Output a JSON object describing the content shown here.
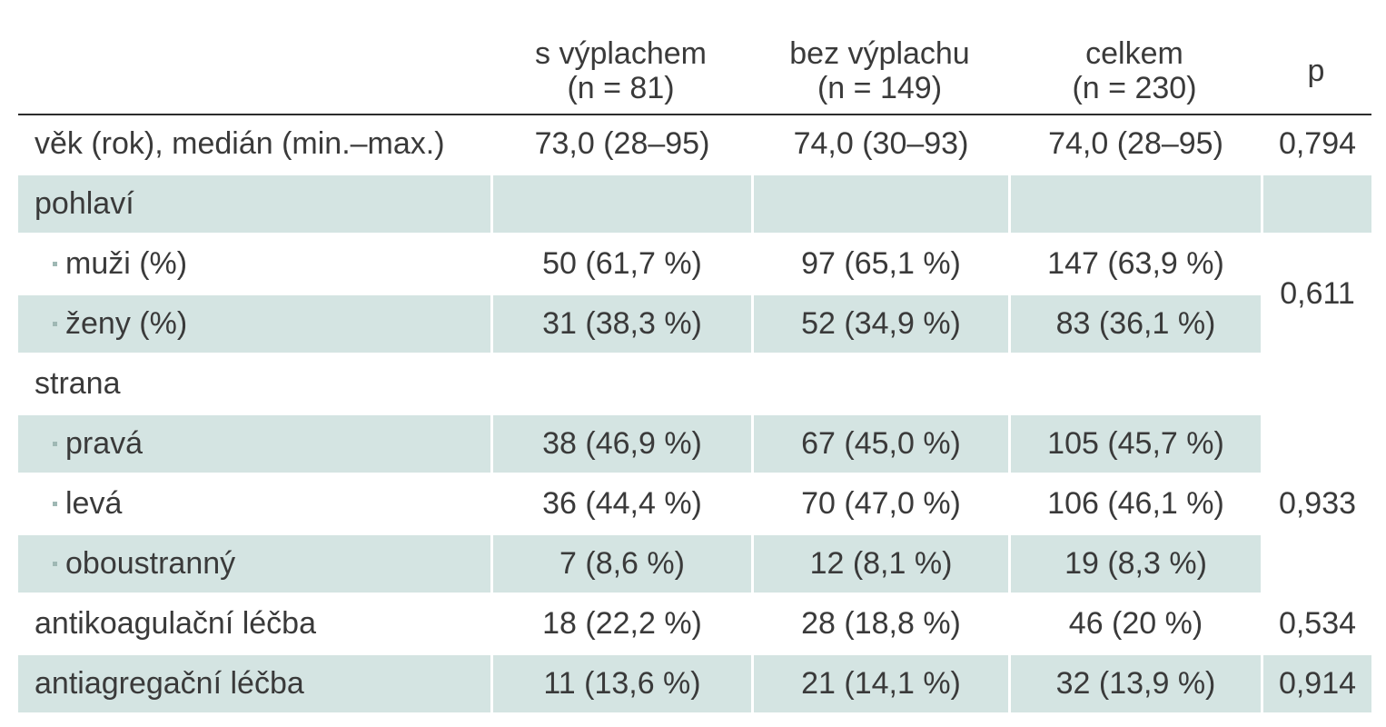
{
  "header": {
    "col1_line1": "s výplachem",
    "col1_line2": "(n = 81)",
    "col2_line1": "bez výplachu",
    "col2_line2": "(n = 149)",
    "col3_line1": "celkem",
    "col3_line2": "(n = 230)",
    "col4": "p"
  },
  "rows": [
    {
      "label": "věk (rok), medián (min.–max.)",
      "c1": "73,0 (28–95)",
      "c2": "74,0 (30–93)",
      "c3": "74,0 (28–95)",
      "p": "0,794"
    },
    {
      "label": "pohlaví"
    },
    {
      "label": "muži (%)",
      "c1": "50 (61,7 %)",
      "c2": "97 (65,1 %)",
      "c3": "147 (63,9 %)"
    },
    {
      "label": "ženy (%)",
      "c1": "31 (38,3 %)",
      "c2": "52 (34,9 %)",
      "c3": "83 (36,1 %)"
    },
    {
      "label": "strana"
    },
    {
      "label": "pravá",
      "c1": "38 (46,9 %)",
      "c2": "67 (45,0 %)",
      "c3": "105 (45,7 %)"
    },
    {
      "label": "levá",
      "c1": "36 (44,4 %)",
      "c2": "70 (47,0 %)",
      "c3": "106 (46,1 %)"
    },
    {
      "label": "oboustranný",
      "c1": "7 (8,6 %)",
      "c2": "12 (8,1 %)",
      "c3": "19 (8,3 %)"
    },
    {
      "label": "antikoagulační léčba",
      "c1": "18 (22,2 %)",
      "c2": "28 (18,8 %)",
      "c3": "46 (20 %)",
      "p": "0,534"
    },
    {
      "label": "antiagregační léčba",
      "c1": "11 (13,6 %)",
      "c2": "21 (14,1 %)",
      "c3": "32 (13,9 %)",
      "p": "0,914"
    }
  ],
  "merged_p": {
    "sex": "0,611",
    "side": "0,933"
  }
}
